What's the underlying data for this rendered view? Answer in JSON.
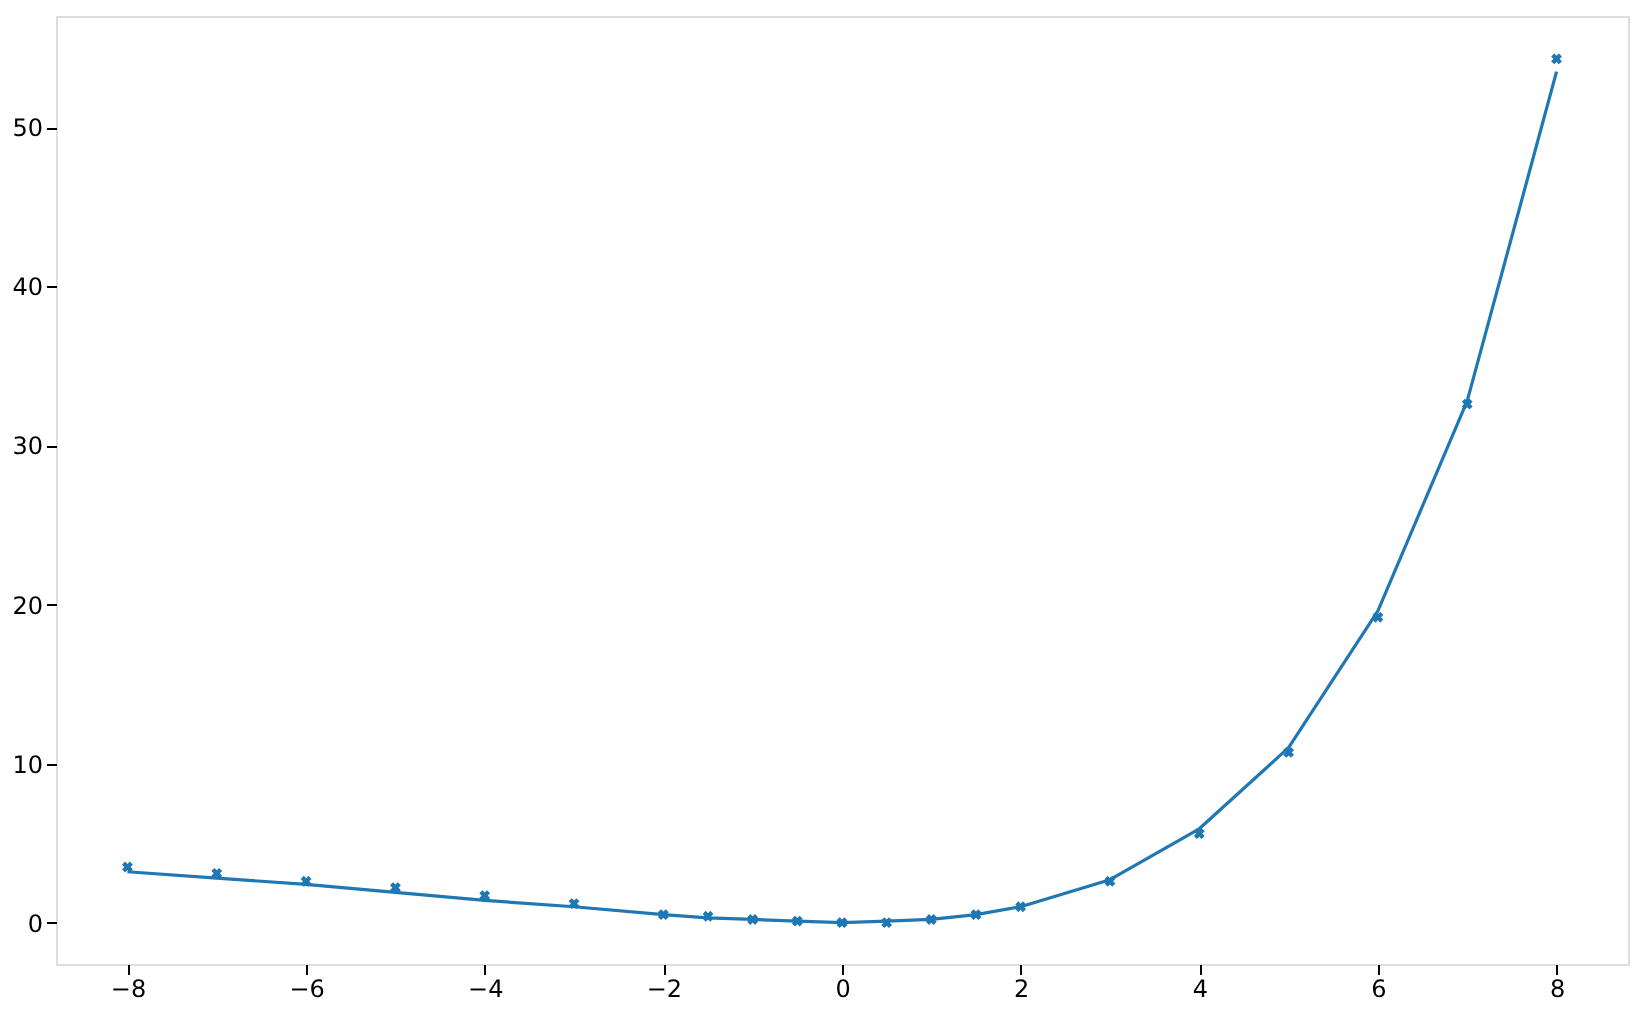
{
  "chart_data": {
    "type": "scatter",
    "x": [
      -8,
      -7,
      -6,
      -5,
      -4,
      -3,
      -2,
      -1.5,
      -1,
      -0.5,
      0,
      0.5,
      1,
      1.5,
      2,
      3,
      4,
      5,
      6,
      7,
      8
    ],
    "series": [
      {
        "marker": "cross",
        "color": "#1f77b4",
        "values": [
          3.5,
          3.1,
          2.6,
          2.2,
          1.7,
          1.2,
          0.5,
          0.4,
          0.2,
          0.1,
          0,
          0,
          0.2,
          0.5,
          1.0,
          2.6,
          5.6,
          10.7,
          19.2,
          32.6,
          54.3
        ]
      },
      {
        "type": "line",
        "marker": "none",
        "line_style": "solid",
        "color": "#1f77b4",
        "values": [
          3.2,
          2.8,
          2.4,
          1.9,
          1.4,
          1.0,
          0.5,
          0.3,
          0.2,
          0.1,
          0,
          0.1,
          0.2,
          0.5,
          1.0,
          2.7,
          5.9,
          11.0,
          19.6,
          32.8,
          53.5
        ]
      }
    ],
    "xlim": [
      -8.8,
      8.8
    ],
    "xticks": [
      -8,
      -6,
      -4,
      -2,
      0,
      2,
      4,
      6,
      8
    ],
    "ylim": [
      -2.6,
      57
    ],
    "yticks": [
      0,
      10,
      20,
      30,
      40,
      50
    ],
    "grid": false,
    "legend": false
  }
}
